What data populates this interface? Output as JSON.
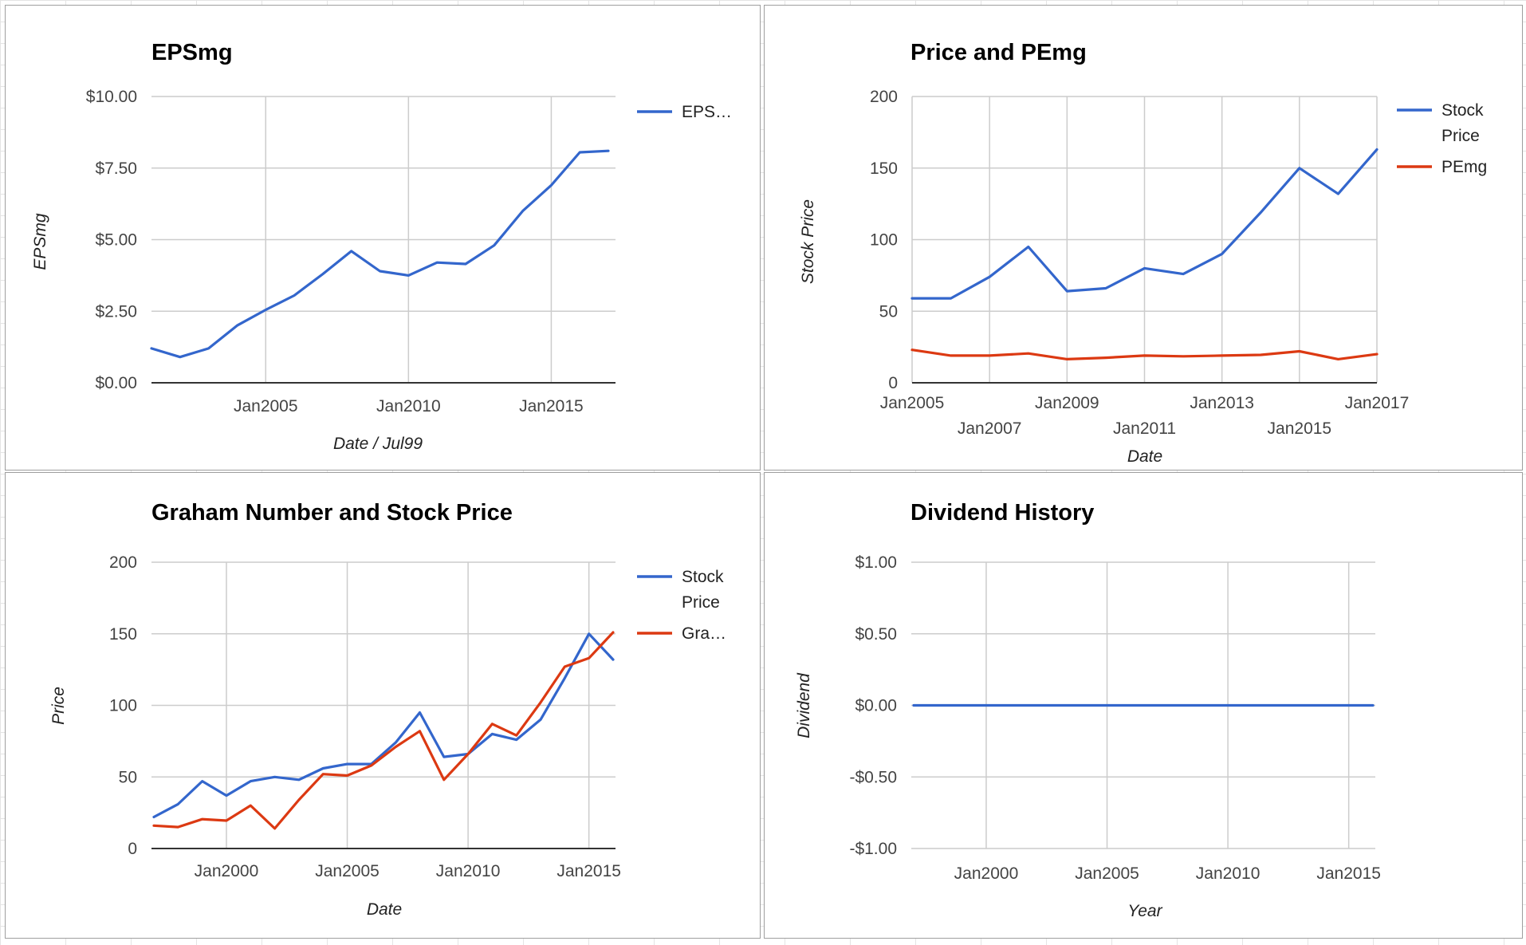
{
  "chart_data": [
    {
      "id": "eps",
      "type": "line",
      "title": "EPSmg",
      "xlabel": "Date / Jul99",
      "ylabel": "EPSmg",
      "ylim": [
        0,
        10
      ],
      "yticks": [
        "$0.00",
        "$2.50",
        "$5.00",
        "$7.50",
        "$10.00"
      ],
      "xticks": [
        "Jan2005",
        "Jan2010",
        "Jan2015"
      ],
      "legend_position": "right",
      "grid": true,
      "series": [
        {
          "name": "EPS…",
          "color": "#3366cc",
          "x": [
            2001,
            2002,
            2003,
            2004,
            2005,
            2006,
            2007,
            2008,
            2009,
            2010,
            2011,
            2012,
            2013,
            2014,
            2015,
            2016,
            2017
          ],
          "values": [
            1.2,
            0.9,
            1.2,
            2.0,
            2.55,
            3.05,
            3.8,
            4.6,
            3.9,
            3.75,
            4.2,
            4.15,
            4.8,
            6.0,
            6.9,
            8.05,
            8.1
          ]
        }
      ]
    },
    {
      "id": "price-pe",
      "type": "line",
      "title": "Price and PEmg",
      "xlabel": "Date",
      "ylabel": "Stock Price",
      "ylim": [
        0,
        200
      ],
      "yticks": [
        "0",
        "50",
        "100",
        "150",
        "200"
      ],
      "xticks_row1": [
        "Jan2005",
        "Jan2009",
        "Jan2013",
        "Jan2017"
      ],
      "xticks_row2": [
        "Jan2007",
        "Jan2011",
        "Jan2015"
      ],
      "legend_position": "right",
      "grid": true,
      "series": [
        {
          "name_lines": [
            "Stock",
            "Price"
          ],
          "color": "#3366cc",
          "x": [
            2005,
            2006,
            2007,
            2008,
            2009,
            2010,
            2011,
            2012,
            2013,
            2014,
            2015,
            2016,
            2017
          ],
          "values": [
            59,
            59,
            74,
            95,
            64,
            66,
            80,
            76,
            90,
            119,
            150,
            132,
            163
          ]
        },
        {
          "name_lines": [
            "PEmg"
          ],
          "color": "#dc3912",
          "x": [
            2005,
            2006,
            2007,
            2008,
            2009,
            2010,
            2011,
            2012,
            2013,
            2014,
            2015,
            2016,
            2017
          ],
          "values": [
            23,
            19,
            19,
            20.5,
            16.5,
            17.5,
            19,
            18.5,
            19,
            19.5,
            22,
            16.5,
            20
          ]
        }
      ]
    },
    {
      "id": "graham",
      "type": "line",
      "title": "Graham Number and Stock Price",
      "xlabel": "Date",
      "ylabel": "Price",
      "ylim": [
        0,
        200
      ],
      "yticks": [
        "0",
        "50",
        "100",
        "150",
        "200"
      ],
      "xticks": [
        "Jan2000",
        "Jan2005",
        "Jan2010",
        "Jan2015"
      ],
      "legend_position": "right",
      "grid": true,
      "series": [
        {
          "name_lines": [
            "Stock",
            "Price"
          ],
          "color": "#3366cc",
          "x": [
            1997,
            1998,
            1999,
            2000,
            2001,
            2002,
            2003,
            2004,
            2005,
            2006,
            2007,
            2008,
            2009,
            2010,
            2011,
            2012,
            2013,
            2014,
            2015,
            2016
          ],
          "values": [
            22,
            31,
            47,
            37,
            47,
            50,
            48,
            56,
            59,
            59,
            74,
            95,
            64,
            66,
            80,
            76,
            90,
            119,
            150,
            132
          ]
        },
        {
          "name_lines": [
            "Gra…"
          ],
          "color": "#dc3912",
          "x": [
            1997,
            1998,
            1999,
            2000,
            2001,
            2002,
            2003,
            2004,
            2005,
            2006,
            2007,
            2008,
            2009,
            2010,
            2011,
            2012,
            2013,
            2014,
            2015,
            2016
          ],
          "values": [
            16,
            15,
            20.5,
            19.5,
            30,
            14,
            34,
            52,
            51,
            58,
            71,
            82,
            48,
            66,
            87,
            79,
            102,
            127,
            133,
            151
          ]
        }
      ]
    },
    {
      "id": "dividend",
      "type": "line",
      "title": "Dividend History",
      "xlabel": "Year",
      "ylabel": "Dividend",
      "ylim": [
        -1,
        1
      ],
      "yticks": [
        "-$1.00",
        "-$0.50",
        "$0.00",
        "$0.50",
        "$1.00"
      ],
      "xticks": [
        "Jan2000",
        "Jan2005",
        "Jan2010",
        "Jan2015"
      ],
      "grid": true,
      "series": [
        {
          "color": "#3366cc",
          "x": [
            1997,
            2016
          ],
          "values": [
            0,
            0
          ]
        }
      ]
    }
  ]
}
